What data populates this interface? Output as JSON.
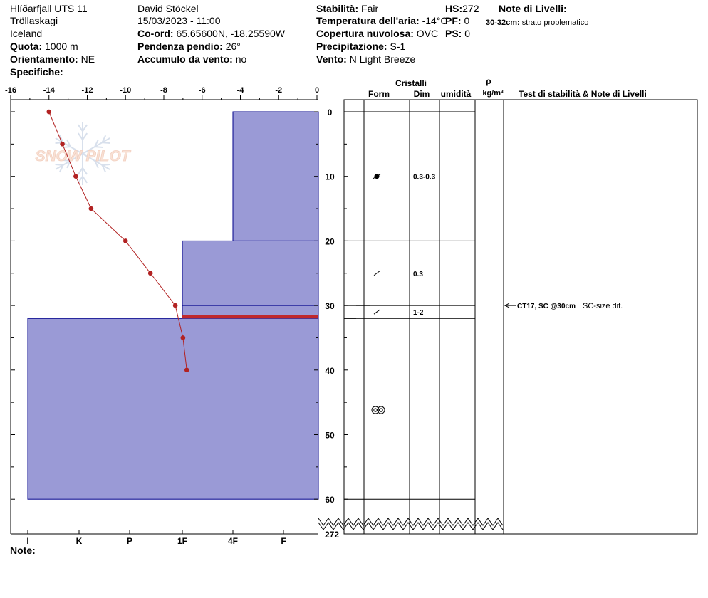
{
  "header": {
    "location": "Hlíðarfjall UTS 11",
    "region": "Tröllaskagi",
    "country": "Iceland",
    "elevation_label": "Quota:",
    "elevation_value": "1000 m",
    "aspect_label": "Orientamento:",
    "aspect_value": "NE",
    "specifics_label": "Specifiche:",
    "observer": "David Stöckel",
    "datetime": "15/03/2023 - 11:00",
    "coord_label": "Co-ord:",
    "coord_value": "65.65600N, -18.25590W",
    "slope_label": "Pendenza pendio:",
    "slope_value": "26°",
    "wind_load_label": "Accumulo da vento:",
    "wind_load_value": "no",
    "stability_label": "Stabilità:",
    "stability_value": "Fair",
    "air_temp_label": "Temperatura dell'aria:",
    "air_temp_value": "-14°C",
    "cloud_label": "Copertura nuvolosa:",
    "cloud_value": "OVC",
    "precip_label": "Precipitazione:",
    "precip_value": "S-1",
    "wind_label": "Vento:",
    "wind_value": "N Light Breeze",
    "hs_label": "HS:",
    "hs_value": "272",
    "pf_label": "PF:",
    "pf_value": "0",
    "ps_label": "PS:",
    "ps_value": "0",
    "layer_notes_label": "Note di Livelli:",
    "layer_note_depth": "30-32cm:",
    "layer_note_text": "strato problematico",
    "notes_label": "Note:"
  },
  "watermark": "SNOW PILOT",
  "columns": {
    "cristalli": "Cristalli",
    "form": "Form",
    "dim": "Dim",
    "umidita": "umidità",
    "rho": "ρ",
    "density_unit": "kg/m³",
    "tests": "Test di stabilità & Note di Livelli"
  },
  "chart_data": {
    "type": "snow-profile",
    "temperature_axis": {
      "range": [
        -16,
        0
      ],
      "ticks": [
        "-16",
        "-14",
        "-12",
        "-10",
        "-8",
        "-6",
        "-4",
        "-2",
        "0"
      ]
    },
    "depth_axis": {
      "range": [
        0,
        60
      ],
      "ticks": [
        "0",
        "10",
        "20",
        "30",
        "40",
        "50",
        "60"
      ],
      "bottom_label": "272"
    },
    "hardness_axis": {
      "ticks": [
        "I",
        "K",
        "P",
        "1F",
        "4F",
        "F"
      ]
    },
    "temperature_profile": [
      {
        "depth": 0,
        "temp": -14.0
      },
      {
        "depth": 5,
        "temp": -13.3
      },
      {
        "depth": 10,
        "temp": -12.6
      },
      {
        "depth": 15,
        "temp": -11.8
      },
      {
        "depth": 20,
        "temp": -10.0
      },
      {
        "depth": 25,
        "temp": -8.7
      },
      {
        "depth": 30,
        "temp": -7.4
      },
      {
        "depth": 35,
        "temp": -7.0
      },
      {
        "depth": 40,
        "temp": -6.8
      }
    ],
    "hardness_layers": [
      {
        "top": 0,
        "bottom": 20,
        "hardness": "4F"
      },
      {
        "top": 20,
        "bottom": 30,
        "hardness": "1F"
      },
      {
        "top": 30,
        "bottom": 32,
        "hardness": "1F"
      },
      {
        "top": 32,
        "bottom": 60,
        "hardness": "I"
      }
    ],
    "problem_layer": {
      "top": 31.5,
      "bottom": 32
    },
    "layer_boundaries": [
      0,
      20,
      30,
      32,
      60
    ],
    "crystal_layers": [
      {
        "depth": 10,
        "form": "rounding-particles-icon",
        "size": "0.3-0.3"
      },
      {
        "depth": 25,
        "form": "decomposing-fragments-icon",
        "size": "0.3"
      },
      {
        "depth": 31,
        "form": "decomposing-fragments-icon",
        "size": "1-2"
      },
      {
        "depth": 46.2,
        "form": "melt-forms-icon",
        "size": ""
      }
    ],
    "stability_tests": [
      {
        "depth": 30,
        "result": "CT17, SC @30cm",
        "note": "SC-size dif."
      }
    ]
  }
}
